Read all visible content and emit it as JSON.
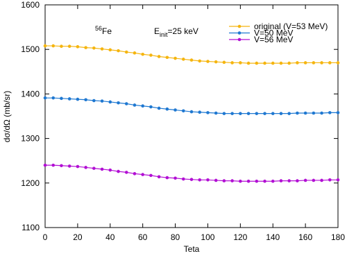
{
  "chart_data": {
    "type": "line",
    "xlabel": "Teta",
    "ylabel": "dσ/dΩ (mb/sr)",
    "annotations": [
      {
        "superscript": "56",
        "text": "Fe"
      },
      {
        "text": "E",
        "subscript": "init",
        "suffix": "=25 keV"
      }
    ],
    "x": [
      0,
      5,
      10,
      15,
      20,
      25,
      30,
      35,
      40,
      45,
      50,
      55,
      60,
      65,
      70,
      75,
      80,
      85,
      90,
      95,
      100,
      105,
      110,
      115,
      120,
      125,
      130,
      135,
      140,
      145,
      150,
      155,
      160,
      165,
      170,
      175,
      180
    ],
    "series": [
      {
        "name": "original (V=53 MeV)",
        "color": "#f5b50f",
        "values": [
          1508,
          1508,
          1507,
          1507,
          1506,
          1504,
          1503,
          1501,
          1499,
          1497,
          1494,
          1492,
          1489,
          1487,
          1484,
          1482,
          1480,
          1478,
          1476,
          1474,
          1473,
          1472,
          1471,
          1470,
          1470,
          1469,
          1469,
          1469,
          1469,
          1469,
          1469,
          1470,
          1470,
          1470,
          1470,
          1470,
          1470
        ]
      },
      {
        "name": "V=50 MeV",
        "color": "#1f78d1",
        "values": [
          1391,
          1391,
          1390,
          1389,
          1388,
          1387,
          1385,
          1384,
          1382,
          1380,
          1378,
          1375,
          1373,
          1371,
          1368,
          1366,
          1364,
          1362,
          1360,
          1359,
          1358,
          1357,
          1356,
          1356,
          1356,
          1356,
          1356,
          1356,
          1356,
          1356,
          1356,
          1357,
          1357,
          1357,
          1357,
          1358,
          1358
        ]
      },
      {
        "name": "V=56 MeV",
        "color": "#b20fd4",
        "values": [
          1240,
          1240,
          1239,
          1238,
          1237,
          1235,
          1233,
          1231,
          1229,
          1226,
          1224,
          1221,
          1219,
          1217,
          1214,
          1212,
          1211,
          1209,
          1208,
          1207,
          1207,
          1206,
          1205,
          1205,
          1204,
          1204,
          1204,
          1204,
          1204,
          1205,
          1205,
          1205,
          1206,
          1206,
          1206,
          1207,
          1207
        ]
      }
    ],
    "xlim": [
      0,
      180
    ],
    "xticks": [
      0,
      20,
      40,
      60,
      80,
      100,
      120,
      140,
      160,
      180
    ],
    "ylim": [
      1100,
      1600
    ],
    "yticks": [
      1100,
      1200,
      1300,
      1400,
      1500,
      1600
    ],
    "grid": false,
    "legend": "upper right"
  }
}
